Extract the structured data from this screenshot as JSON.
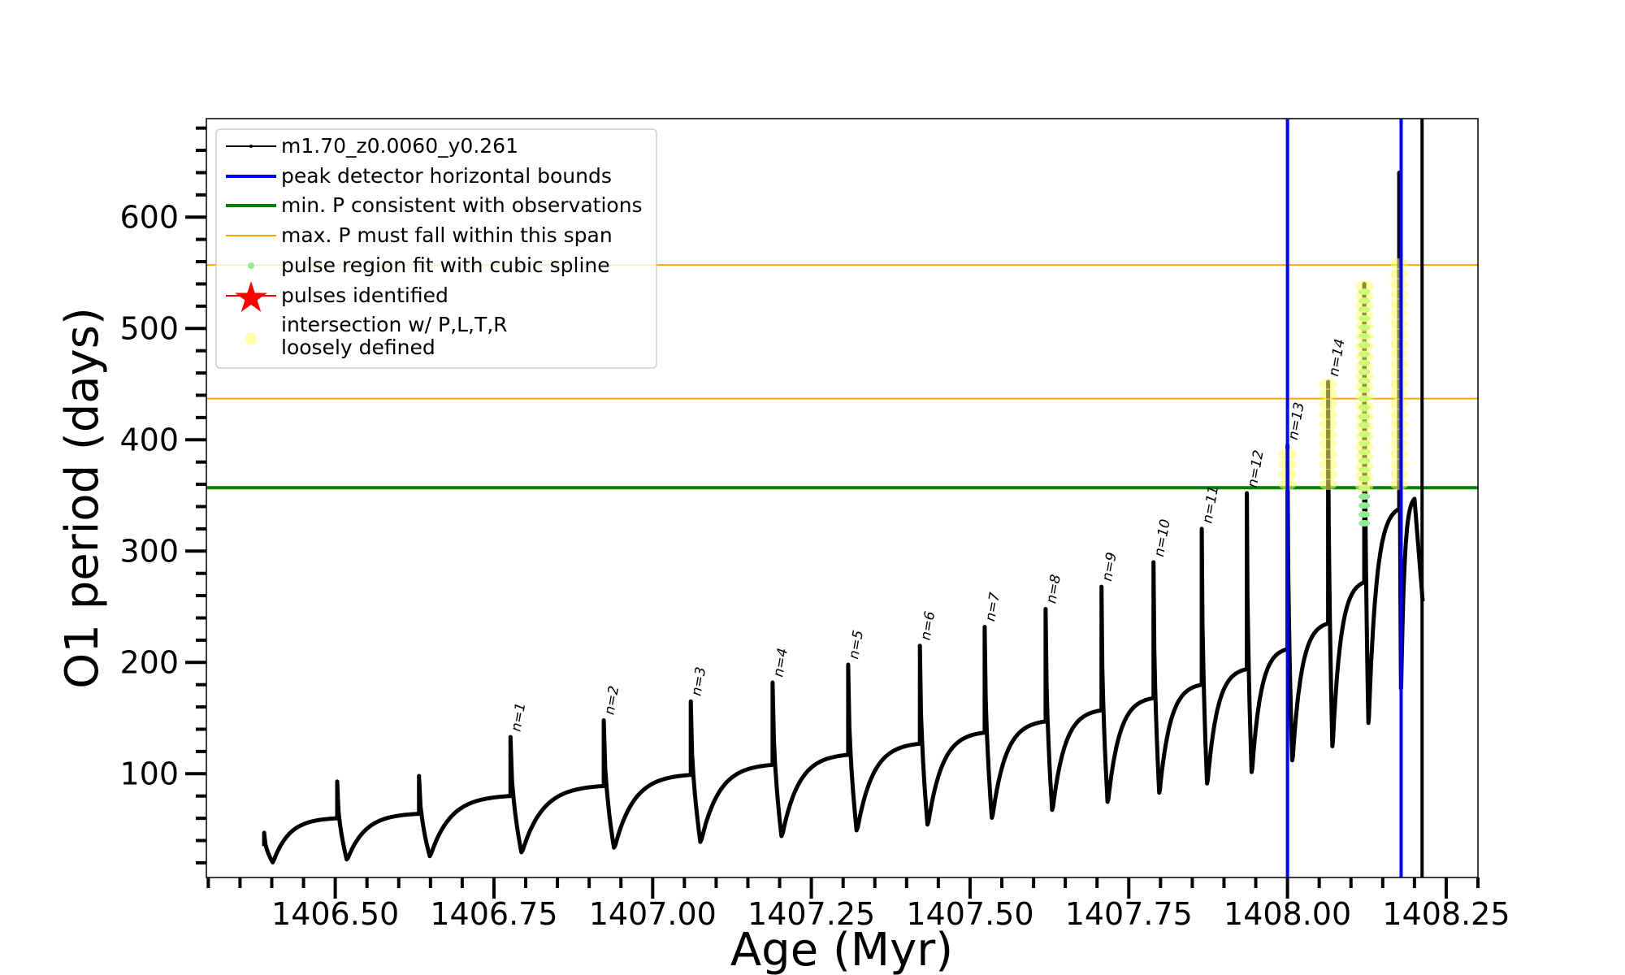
{
  "chart_data": {
    "type": "line",
    "xlabel": "Age (Myr)",
    "ylabel": "O1 period (days)",
    "xlim": [
      1406.297,
      1408.3
    ],
    "ylim": [
      6.8,
      688.5
    ],
    "xticks": [
      "1406.50",
      "1406.75",
      "1407.00",
      "1407.25",
      "1407.50",
      "1407.75",
      "1408.00",
      "1408.25"
    ],
    "xtick_values": [
      1406.5,
      1406.75,
      1407.0,
      1407.25,
      1407.5,
      1407.75,
      1408.0,
      1408.25
    ],
    "yticks": [
      "100",
      "200",
      "300",
      "400",
      "500",
      "600"
    ],
    "ytick_values": [
      100,
      200,
      300,
      400,
      500,
      600
    ],
    "grid": false,
    "legend_placement": "top-left",
    "legend": [
      {
        "label": "m1.70_z0.0060_y0.261",
        "kind": "line-dot",
        "color": "#000000"
      },
      {
        "label": "peak detector horizontal bounds",
        "kind": "line",
        "color": "#0000ff"
      },
      {
        "label": "min. P consistent with observations",
        "kind": "line",
        "color": "#008000"
      },
      {
        "label": "max. P must fall within this span",
        "kind": "thin-line",
        "color": "#ffa500"
      },
      {
        "label": "pulse region fit with cubic spline",
        "kind": "dot",
        "color": "#90ee90"
      },
      {
        "label": "pulses identified",
        "kind": "star",
        "color": "#ff0000"
      },
      {
        "label": "intersection w/ P,L,T,R",
        "label2": "loosely defined",
        "kind": "big-dot",
        "color": "#ffffaa"
      }
    ],
    "series_name": "m1.70_z0.0060_y0.261",
    "pulses": [
      {
        "age": 1406.388,
        "start": 35,
        "peak": 47,
        "trough": 20,
        "end": 60,
        "label": ""
      },
      {
        "age": 1406.503,
        "peak": 93,
        "trough": 22,
        "end": 64,
        "label": ""
      },
      {
        "age": 1406.632,
        "peak": 98,
        "trough": 25,
        "end": 80,
        "label": ""
      },
      {
        "age": 1406.776,
        "peak": 133,
        "trough": 28,
        "end": 89,
        "label": "n=1"
      },
      {
        "age": 1406.923,
        "peak": 148,
        "trough": 32,
        "end": 99,
        "label": "n=2"
      },
      {
        "age": 1407.06,
        "peak": 165,
        "trough": 37,
        "end": 108,
        "label": "n=3"
      },
      {
        "age": 1407.189,
        "peak": 182,
        "trough": 42,
        "end": 117,
        "label": "n=4"
      },
      {
        "age": 1407.308,
        "peak": 198,
        "trough": 47,
        "end": 127,
        "label": "n=5"
      },
      {
        "age": 1407.421,
        "peak": 215,
        "trough": 52,
        "end": 137,
        "label": "n=6"
      },
      {
        "age": 1407.523,
        "peak": 232,
        "trough": 58,
        "end": 147,
        "label": "n=7"
      },
      {
        "age": 1407.619,
        "peak": 248,
        "trough": 65,
        "end": 157,
        "label": "n=8"
      },
      {
        "age": 1407.707,
        "peak": 268,
        "trough": 72,
        "end": 168,
        "label": "n=9"
      },
      {
        "age": 1407.789,
        "peak": 290,
        "trough": 80,
        "end": 180,
        "label": "n=10"
      },
      {
        "age": 1407.865,
        "peak": 320,
        "trough": 88,
        "end": 194,
        "label": "n=11"
      },
      {
        "age": 1407.936,
        "peak": 352,
        "trough": 98,
        "end": 212,
        "label": "n=12"
      },
      {
        "age": 1408.0,
        "peak": 395,
        "trough": 108,
        "end": 235,
        "label": "n=13"
      },
      {
        "age": 1408.064,
        "peak": 452,
        "trough": 120,
        "end": 272,
        "label": "n=14"
      },
      {
        "age": 1408.121,
        "peak": 540,
        "trough": 140,
        "end": 338,
        "label": ""
      },
      {
        "age": 1408.176,
        "peak": 640,
        "trough": 170,
        "end": 347,
        "label": ""
      }
    ],
    "final": {
      "age_peak": 1408.2,
      "age_end": 1408.213,
      "end": 255
    },
    "vertical_lines": [
      {
        "age": 1408.0,
        "color": "#0000ff"
      },
      {
        "age": 1408.179,
        "color": "#0000ff"
      },
      {
        "age": 1408.212,
        "color": "#000000"
      }
    ],
    "horizontal_lines": [
      {
        "P": 357,
        "color": "#008000"
      },
      {
        "P": 437,
        "color": "#ffa500"
      },
      {
        "P": 557,
        "color": "#ffa500"
      }
    ],
    "yellow_regions": [
      {
        "age": 1408.0,
        "from": 360,
        "to": 395
      },
      {
        "age": 1408.064,
        "from": 360,
        "to": 452
      },
      {
        "age": 1408.121,
        "from": 358,
        "to": 540
      },
      {
        "age": 1408.176,
        "from": 360,
        "to": 560
      }
    ],
    "green_region": {
      "age": 1408.121,
      "from": 325,
      "to": 540
    }
  }
}
